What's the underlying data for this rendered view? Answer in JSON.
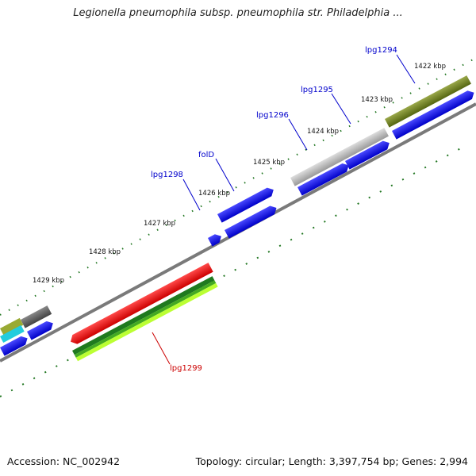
{
  "title": "Legionella pneumophila subsp. pneumophila str. Philadelphia ...",
  "footer": {
    "accession": "Accession: NC_002942",
    "summary": "Topology: circular; Length: 3,397,754 bp; Genes: 2,994"
  },
  "ticks": [
    "1422 kbp",
    "1423 kbp",
    "1424 kbp",
    "1425 kbp",
    "1426 kbp",
    "1427 kbp",
    "1428 kbp",
    "1429 kbp"
  ],
  "gene_labels": [
    {
      "text": "lpg1294",
      "color": "#0000cc"
    },
    {
      "text": "lpg1295",
      "color": "#0000cc"
    },
    {
      "text": "lpg1296",
      "color": "#0000cc"
    },
    {
      "text": "folD",
      "color": "#0000cc"
    },
    {
      "text": "lpg1298",
      "color": "#0000cc"
    },
    {
      "text": "lpg1299",
      "color": "#cc0000"
    }
  ],
  "colors": {
    "backbone": "#8a8a8a",
    "cds": "#0000ee",
    "highlight": "#ee1111",
    "outer_ring": "#667722",
    "gray_feature": "#b5b5b5",
    "green_dots": "#227722"
  }
}
